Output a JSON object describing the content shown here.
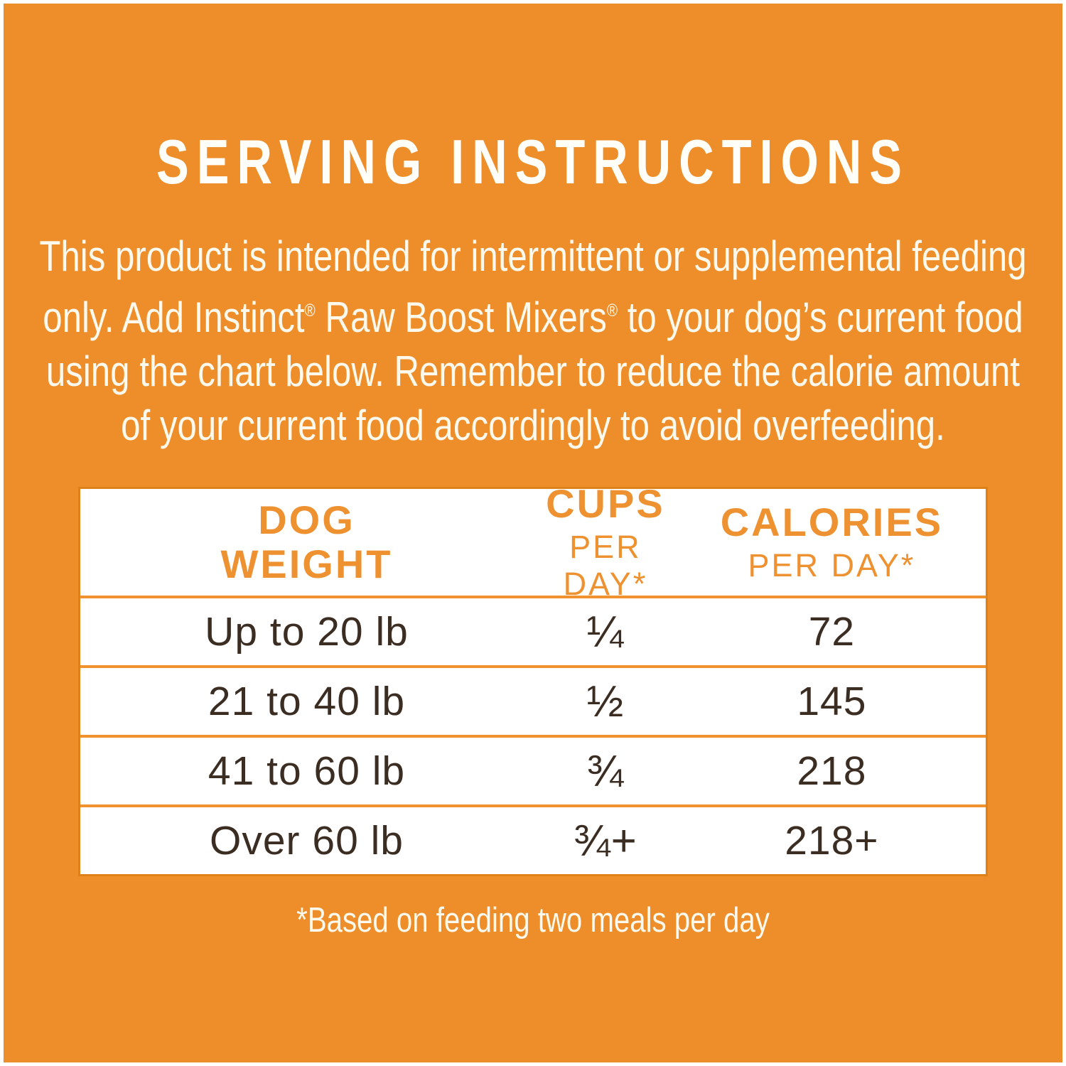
{
  "colors": {
    "background_orange": "#EE8E2B",
    "accent_orange_text": "#EE9130",
    "divider_orange": "#F0932E",
    "table_border_orange": "#DE8118",
    "row_text_brown": "#3B2D22",
    "cream_text": "#FEF9ED",
    "title_white": "#FFFEF9",
    "table_background": "#FFFFFF"
  },
  "title": "SERVING INSTRUCTIONS",
  "intro": {
    "line1": "This product is intended for intermittent or supplemental feeding",
    "line2a": "only. Add Instinct",
    "line2_reg1": "®",
    "line2b": " Raw Boost Mixers",
    "line2_reg2": "®",
    "line2c": " to your dog’s current food",
    "line3": "using the chart below. Remember to reduce the calorie amount",
    "line4": "of your current food accordingly to avoid overfeeding."
  },
  "table": {
    "columns": [
      {
        "line1": "DOG",
        "line2": "WEIGHT",
        "sub": ""
      },
      {
        "line1": "CUPS",
        "line2": "",
        "sub": "PER DAY*"
      },
      {
        "line1": "CALORIES",
        "line2": "",
        "sub": "PER DAY*"
      }
    ],
    "rows": [
      {
        "weight": "Up to 20 lb",
        "cups": "¼",
        "calories": "72"
      },
      {
        "weight": "21 to 40 lb",
        "cups": "½",
        "calories": "145"
      },
      {
        "weight": "41 to 60 lb",
        "cups": "¾",
        "calories": "218"
      },
      {
        "weight": "Over 60 lb",
        "cups": "¾+",
        "calories": "218+"
      }
    ]
  },
  "footnote": "*Based on feeding two meals per day"
}
